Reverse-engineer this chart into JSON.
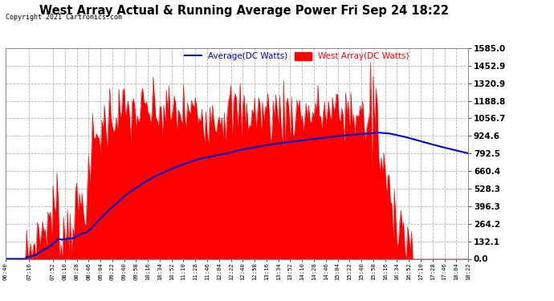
{
  "title": "West Array Actual & Running Average Power Fri Sep 24 18:22",
  "copyright": "Copyright 2021 Cartronics.com",
  "legend_average": "Average(DC Watts)",
  "legend_west": "West Array(DC Watts)",
  "yticks": [
    0.0,
    132.1,
    264.2,
    396.3,
    528.3,
    660.4,
    792.5,
    924.6,
    1056.7,
    1188.8,
    1320.9,
    1452.9,
    1585.0
  ],
  "ymax": 1585.0,
  "ymin": 0.0,
  "bg_color": "#ffffff",
  "plot_bg_color": "#ffffff",
  "grid_color": "#aaaaaa",
  "avg_line_color": "#0000cc",
  "west_fill_color": "#ff0000",
  "west_line_color": "#cc0000",
  "x_tick_labels": [
    "06:40",
    "07:16",
    "07:52",
    "08:10",
    "08:28",
    "08:46",
    "09:04",
    "09:22",
    "09:40",
    "09:58",
    "10:16",
    "10:34",
    "10:52",
    "11:10",
    "11:28",
    "11:46",
    "12:04",
    "12:22",
    "12:40",
    "12:58",
    "13:16",
    "13:34",
    "13:52",
    "14:10",
    "14:28",
    "14:46",
    "15:04",
    "15:22",
    "15:40",
    "15:58",
    "16:16",
    "16:34",
    "16:52",
    "17:10",
    "17:28",
    "17:46",
    "18:04",
    "18:22"
  ]
}
